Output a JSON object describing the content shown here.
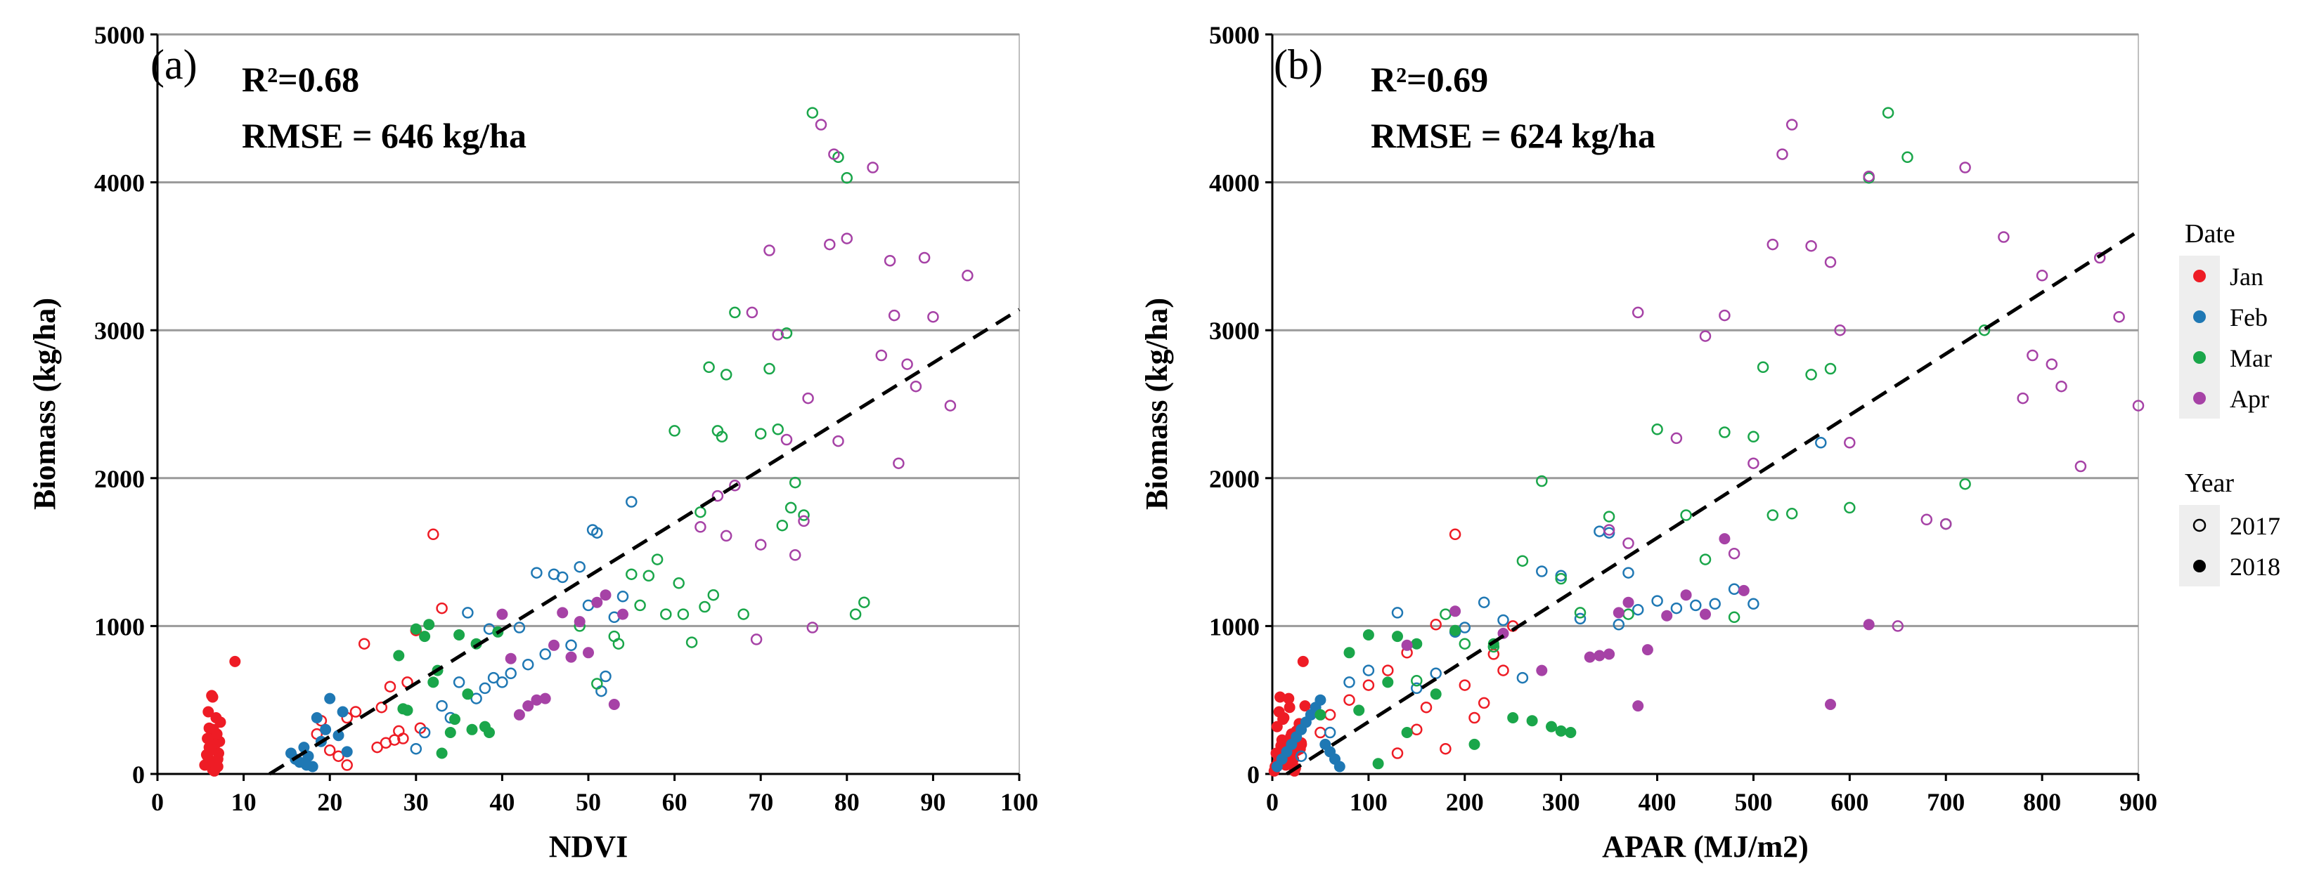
{
  "colors": {
    "Jan": "#ee1c25",
    "Feb": "#1f78b4",
    "Mar": "#1aa64a",
    "Apr": "#a642a6",
    "regression": "#000000",
    "grid": "#9a9a9a"
  },
  "legend": {
    "date_title": "Date",
    "date_items": [
      {
        "label": "Jan",
        "color": "#ee1c25"
      },
      {
        "label": "Feb",
        "color": "#1f78b4"
      },
      {
        "label": "Mar",
        "color": "#1aa64a"
      },
      {
        "label": "Apr",
        "color": "#a642a6"
      }
    ],
    "year_title": "Year",
    "year_items": [
      {
        "label": "2017",
        "marker": "open-circle"
      },
      {
        "label": "2018",
        "marker": "filled-circle"
      }
    ]
  },
  "chart_data": [
    {
      "type": "scatter",
      "panel_label": "(a)",
      "r2_text": "R²=0.68",
      "rmse_text": "RMSE = 646 kg/ha",
      "xlabel": "NDVI",
      "ylabel": "Biomass (kg/ha)",
      "xlim": [
        0,
        100
      ],
      "ylim": [
        0,
        5000
      ],
      "xticks": [
        0,
        10,
        20,
        30,
        40,
        50,
        60,
        70,
        80,
        90,
        100
      ],
      "yticks": [
        0,
        1000,
        2000,
        3000,
        4000,
        5000
      ],
      "grid": "horizontal",
      "regression_line": {
        "style": "dashed",
        "x": [
          13,
          100
        ],
        "y": [
          0,
          3140
        ]
      },
      "series": [
        {
          "name": "Jan",
          "year": "2018",
          "marker": "filled",
          "x": [
            5.5,
            5.8,
            6,
            6.2,
            6.5,
            6.8,
            7,
            7.2,
            5.7,
            6.1,
            6.4,
            6.9,
            7.3,
            5.9,
            6.3,
            6.6,
            6.7,
            7.1,
            6,
            6.5,
            7,
            6.2,
            6.8,
            5.8,
            6.4,
            9
          ],
          "y": [
            60,
            120,
            180,
            250,
            300,
            380,
            50,
            220,
            130,
            90,
            30,
            270,
            350,
            420,
            530,
            20,
            200,
            140,
            310,
            80,
            100,
            160,
            40,
            240,
            520,
            760
          ]
        },
        {
          "name": "Jan",
          "year": "2017",
          "marker": "open",
          "x": [
            18.5,
            21,
            22,
            24,
            26,
            27,
            28,
            28.5,
            29,
            30,
            32,
            33,
            22,
            20,
            19,
            26.5,
            30.5,
            27.5,
            25.5,
            23
          ],
          "y": [
            270,
            120,
            60,
            880,
            450,
            590,
            290,
            240,
            620,
            970,
            1620,
            1120,
            380,
            160,
            360,
            210,
            310,
            230,
            180,
            420
          ]
        },
        {
          "name": "Feb",
          "year": "2018",
          "marker": "filled",
          "x": [
            15.5,
            16.5,
            17,
            17.5,
            18,
            18.5,
            19,
            19.5,
            20,
            21,
            21.5,
            22,
            16,
            17.3
          ],
          "y": [
            140,
            80,
            180,
            120,
            50,
            380,
            220,
            300,
            510,
            260,
            420,
            150,
            100,
            60
          ]
        },
        {
          "name": "Feb",
          "year": "2017",
          "marker": "open",
          "x": [
            31,
            34,
            35,
            36,
            37,
            38,
            39,
            40,
            41,
            42,
            43,
            44,
            45,
            46,
            47,
            48,
            49,
            50,
            50.5,
            51,
            51.5,
            52,
            53,
            54,
            55,
            30,
            33,
            38.5
          ],
          "y": [
            280,
            380,
            620,
            1090,
            510,
            580,
            650,
            620,
            680,
            990,
            740,
            1360,
            810,
            1350,
            1330,
            870,
            1400,
            1140,
            1650,
            1630,
            560,
            660,
            1060,
            1200,
            1840,
            170,
            460,
            980
          ]
        },
        {
          "name": "Mar",
          "year": "2018",
          "marker": "filled",
          "x": [
            28,
            29,
            30,
            31,
            31.5,
            32,
            33,
            34,
            35,
            36,
            37,
            38,
            38.5,
            39.5,
            34.5,
            28.5,
            32.5,
            36.5
          ],
          "y": [
            800,
            430,
            980,
            930,
            1010,
            620,
            140,
            280,
            940,
            540,
            880,
            320,
            280,
            960,
            370,
            440,
            700,
            300
          ]
        },
        {
          "name": "Mar",
          "year": "2017",
          "marker": "open",
          "x": [
            49,
            51,
            53,
            55,
            57,
            58,
            59,
            60,
            61,
            62,
            63,
            64,
            65,
            66,
            67,
            68,
            70,
            71,
            72,
            73,
            74,
            75,
            76,
            79,
            80,
            81,
            82,
            56,
            60.5,
            64.5,
            65.5,
            72.5,
            73.5,
            53.5,
            63.5
          ],
          "y": [
            1000,
            610,
            930,
            1350,
            1340,
            1450,
            1080,
            2320,
            1080,
            890,
            1770,
            2750,
            2320,
            2700,
            3120,
            1080,
            2300,
            2740,
            2330,
            2980,
            1970,
            1750,
            4470,
            4170,
            4030,
            1080,
            1160,
            1140,
            1290,
            1210,
            2280,
            1680,
            1800,
            880,
            1130
          ]
        },
        {
          "name": "Apr",
          "year": "2018",
          "marker": "filled",
          "x": [
            40,
            41,
            42,
            43,
            44,
            45,
            46,
            47,
            48,
            49,
            50,
            51,
            52,
            53,
            54
          ],
          "y": [
            1080,
            780,
            400,
            460,
            500,
            510,
            870,
            1090,
            790,
            1030,
            820,
            1160,
            1210,
            470,
            1080
          ]
        },
        {
          "name": "Apr",
          "year": "2017",
          "marker": "open",
          "x": [
            63,
            65,
            66,
            67,
            69,
            70,
            71,
            72,
            73,
            74,
            75,
            76,
            77,
            78,
            79,
            80,
            83,
            84,
            85,
            86,
            87,
            88,
            89,
            90,
            92,
            94,
            69.5,
            75.5,
            78.5,
            85.5
          ],
          "y": [
            1670,
            1880,
            1610,
            1950,
            3120,
            1550,
            3540,
            2970,
            2260,
            1480,
            1710,
            990,
            4390,
            3580,
            2250,
            3620,
            4100,
            2830,
            3470,
            2100,
            2770,
            2620,
            3490,
            3090,
            2490,
            3370,
            910,
            2540,
            4190,
            3100
          ]
        }
      ]
    },
    {
      "type": "scatter",
      "panel_label": "(b)",
      "r2_text": "R²=0.69",
      "rmse_text": "RMSE = 624 kg/ha",
      "xlabel": "APAR (MJ/m2)",
      "ylabel": "Biomass (kg/ha)",
      "xlim": [
        0,
        900
      ],
      "ylim": [
        0,
        5000
      ],
      "xticks": [
        0,
        100,
        200,
        300,
        400,
        500,
        600,
        700,
        800,
        900
      ],
      "yticks": [
        0,
        1000,
        2000,
        3000,
        4000,
        5000
      ],
      "grid": "horizontal",
      "regression_line": {
        "style": "dashed",
        "x": [
          15,
          900
        ],
        "y": [
          0,
          3670
        ]
      },
      "series": [
        {
          "name": "Jan",
          "year": "2018",
          "marker": "filled",
          "x": [
            2,
            4,
            5,
            6,
            8,
            10,
            12,
            14,
            15,
            16,
            18,
            20,
            22,
            24,
            25,
            26,
            28,
            30,
            3,
            7,
            9,
            11,
            13,
            17,
            19,
            21,
            23,
            27,
            29,
            32,
            34
          ],
          "y": [
            20,
            140,
            320,
            80,
            520,
            230,
            380,
            60,
            180,
            120,
            450,
            270,
            100,
            40,
            290,
            160,
            340,
            210,
            50,
            420,
            190,
            370,
            80,
            510,
            250,
            130,
            20,
            300,
            170,
            760,
            460
          ]
        },
        {
          "name": "Jan",
          "year": "2017",
          "marker": "open",
          "x": [
            20,
            30,
            50,
            60,
            80,
            100,
            120,
            130,
            140,
            150,
            160,
            170,
            180,
            190,
            200,
            210,
            220,
            230,
            240,
            250
          ],
          "y": [
            100,
            200,
            280,
            400,
            500,
            600,
            700,
            140,
            820,
            300,
            450,
            1010,
            170,
            1620,
            600,
            380,
            480,
            810,
            700,
            1000
          ]
        },
        {
          "name": "Feb",
          "year": "2018",
          "marker": "filled",
          "x": [
            5,
            10,
            15,
            20,
            25,
            30,
            35,
            40,
            45,
            50,
            55,
            60,
            65,
            70
          ],
          "y": [
            50,
            100,
            150,
            200,
            250,
            300,
            350,
            400,
            450,
            500,
            200,
            150,
            100,
            50
          ]
        },
        {
          "name": "Feb",
          "year": "2017",
          "marker": "open",
          "x": [
            30,
            60,
            80,
            100,
            130,
            150,
            170,
            190,
            200,
            220,
            240,
            260,
            280,
            300,
            320,
            340,
            350,
            360,
            370,
            380,
            400,
            420,
            440,
            460,
            480,
            500,
            570
          ],
          "y": [
            120,
            280,
            620,
            700,
            1090,
            580,
            680,
            960,
            990,
            1160,
            1040,
            650,
            1370,
            1340,
            1050,
            1640,
            1630,
            1010,
            1360,
            1110,
            1170,
            1120,
            1140,
            1150,
            1250,
            1150,
            2240
          ]
        },
        {
          "name": "Mar",
          "year": "2018",
          "marker": "filled",
          "x": [
            50,
            80,
            90,
            100,
            110,
            120,
            130,
            140,
            150,
            170,
            190,
            210,
            230,
            250,
            270,
            290,
            300,
            310
          ],
          "y": [
            400,
            820,
            430,
            940,
            70,
            620,
            930,
            280,
            880,
            540,
            970,
            200,
            880,
            380,
            360,
            320,
            290,
            280
          ]
        },
        {
          "name": "Mar",
          "year": "2017",
          "marker": "open",
          "x": [
            150,
            180,
            200,
            230,
            260,
            280,
            300,
            320,
            350,
            370,
            400,
            430,
            450,
            470,
            480,
            500,
            510,
            520,
            540,
            560,
            580,
            600,
            620,
            640,
            660,
            700,
            720,
            740
          ],
          "y": [
            630,
            1080,
            880,
            860,
            1440,
            1980,
            1320,
            1090,
            1740,
            1080,
            2330,
            1750,
            1450,
            2310,
            1060,
            2280,
            2750,
            1750,
            1760,
            2700,
            2740,
            1800,
            4030,
            4470,
            4170,
            1690,
            1960,
            3000
          ]
        },
        {
          "name": "Apr",
          "year": "2018",
          "marker": "filled",
          "x": [
            140,
            190,
            240,
            280,
            330,
            340,
            350,
            360,
            370,
            380,
            390,
            410,
            430,
            450,
            470,
            490,
            580,
            620
          ],
          "y": [
            870,
            1100,
            950,
            700,
            790,
            800,
            810,
            1090,
            1160,
            460,
            840,
            1070,
            1210,
            1080,
            1590,
            1240,
            470,
            1010
          ]
        },
        {
          "name": "Apr",
          "year": "2017",
          "marker": "open",
          "x": [
            350,
            370,
            380,
            420,
            450,
            470,
            480,
            500,
            520,
            540,
            560,
            580,
            590,
            620,
            650,
            680,
            700,
            720,
            760,
            780,
            790,
            800,
            810,
            820,
            840,
            860,
            880,
            900,
            530,
            600
          ],
          "y": [
            1650,
            1560,
            3120,
            2270,
            2960,
            3100,
            1490,
            2100,
            3580,
            4390,
            3570,
            3460,
            3000,
            4040,
            1000,
            1720,
            1690,
            4100,
            3630,
            2540,
            2830,
            3370,
            2770,
            2620,
            2080,
            3490,
            3090,
            2490,
            4190,
            2240
          ]
        }
      ]
    }
  ]
}
